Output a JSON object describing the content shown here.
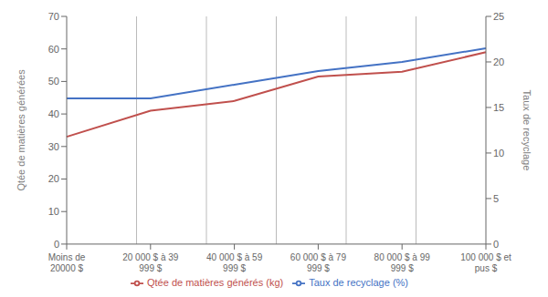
{
  "chart_data": {
    "type": "line",
    "categories": [
      "Moins de\n20000 $",
      "20 000 $ à 39\n999 $",
      "40 000 $ à 59\n999 $",
      "60 000 $ à 79\n999 $",
      "80 000 $ à 99\n999 $",
      "100 000 $ et\npus $"
    ],
    "series": [
      {
        "name": "Taux de recyclage (%)",
        "color": "#4472C4",
        "axis": "y2",
        "values": [
          16.0,
          16.0,
          17.5,
          19.0,
          20.0,
          21.5
        ]
      },
      {
        "name": "Qtée de matières générés (kg)",
        "color": "#C0504D",
        "axis": "y",
        "values": [
          33.0,
          41.0,
          44.0,
          51.5,
          53.0,
          59.0
        ]
      }
    ],
    "y_label": "Qtée de matières générées",
    "y2_label": "Taux de recyclage",
    "ylim": [
      0,
      70
    ],
    "yticks": [
      0,
      10,
      20,
      30,
      40,
      50,
      60,
      70
    ],
    "y2lim": [
      0,
      25
    ],
    "y2ticks": [
      0,
      5,
      10,
      15,
      20,
      25
    ],
    "grid": "x",
    "legend": "bottom"
  }
}
